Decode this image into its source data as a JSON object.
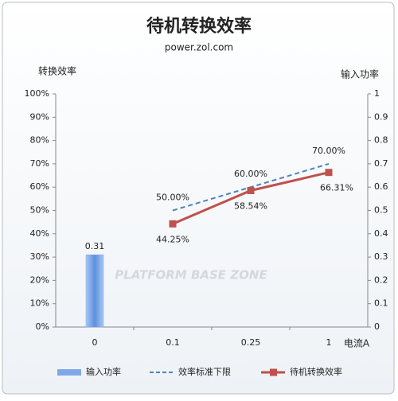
{
  "chart_data": {
    "type": "combo",
    "title": "待机转换效率",
    "subtitle": "power.zol.com",
    "y_label": "转换效率",
    "y2_label": "输入功率",
    "x_label": "电流A",
    "watermark": "PLATFORM BASE ZONE",
    "categories": [
      "0",
      "0.1",
      "0.25",
      "1"
    ],
    "ylim": [
      0,
      100
    ],
    "yticks": [
      {
        "value": 0,
        "label": "0%"
      },
      {
        "value": 10,
        "label": "10%"
      },
      {
        "value": 20,
        "label": "20%"
      },
      {
        "value": 30,
        "label": "30%"
      },
      {
        "value": 40,
        "label": "40%"
      },
      {
        "value": 50,
        "label": "50%"
      },
      {
        "value": 60,
        "label": "60%"
      },
      {
        "value": 70,
        "label": "70%"
      },
      {
        "value": 80,
        "label": "80%"
      },
      {
        "value": 90,
        "label": "90%"
      },
      {
        "value": 100,
        "label": "100%"
      }
    ],
    "y2lim": [
      0,
      1
    ],
    "y2ticks": [
      0,
      0.1,
      0.2,
      0.3,
      0.4,
      0.5,
      0.6,
      0.7,
      0.8,
      0.9,
      1
    ],
    "grid": false,
    "legend": "bottom",
    "series": [
      {
        "name": "输入功率",
        "type": "bar",
        "axis": "y2",
        "color": "#7fa9e6",
        "values": [
          0.31,
          null,
          null,
          null
        ]
      },
      {
        "name": "效率标准下限",
        "type": "dashed-line",
        "color": "#4f81bd",
        "values": [
          null,
          50,
          60,
          70
        ],
        "value_labels": [
          null,
          "50.00%",
          "60.00%",
          "70.00%"
        ]
      },
      {
        "name": "待机转换效率",
        "type": "line",
        "color": "#c0504d",
        "values": [
          null,
          44.25,
          58.54,
          66.31
        ],
        "value_labels": [
          null,
          "44.25%",
          "58.54%",
          "66.31%"
        ]
      }
    ]
  }
}
